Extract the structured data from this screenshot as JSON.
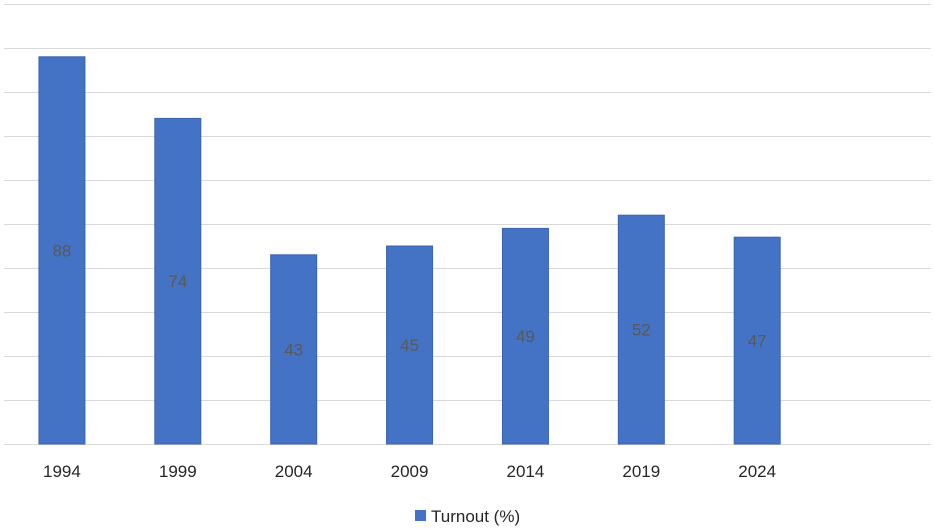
{
  "chart_data": {
    "type": "bar",
    "title": "",
    "xlabel": "",
    "ylabel": "",
    "categories": [
      "1994",
      "1999",
      "2004",
      "2009",
      "2014",
      "2019",
      "2024"
    ],
    "series": [
      {
        "name": "Turnout (%)",
        "values": [
          88,
          74,
          43,
          45,
          49,
          52,
          47
        ],
        "color": "#4472c4"
      }
    ],
    "ylim": [
      0,
      100
    ],
    "y_tick_step": 10,
    "y_tick_labels_shown": false,
    "grid": true,
    "data_labels": "center",
    "legend": "bottom"
  }
}
